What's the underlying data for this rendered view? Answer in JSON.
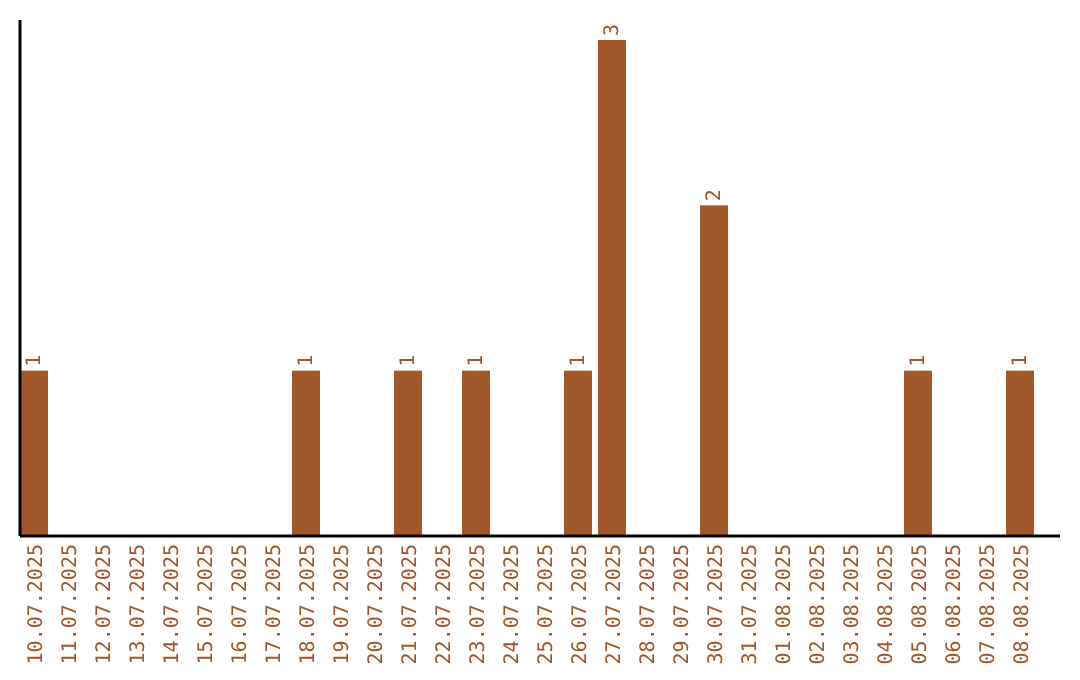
{
  "chart_data": {
    "type": "bar",
    "categories": [
      "10.07.2025",
      "11.07.2025",
      "12.07.2025",
      "13.07.2025",
      "14.07.2025",
      "15.07.2025",
      "16.07.2025",
      "17.07.2025",
      "18.07.2025",
      "19.07.2025",
      "20.07.2025",
      "21.07.2025",
      "22.07.2025",
      "23.07.2025",
      "24.07.2025",
      "25.07.2025",
      "26.07.2025",
      "27.07.2025",
      "28.07.2025",
      "29.07.2025",
      "30.07.2025",
      "31.07.2025",
      "01.08.2025",
      "02.08.2025",
      "03.08.2025",
      "04.08.2025",
      "05.08.2025",
      "06.08.2025",
      "07.08.2025",
      "08.08.2025"
    ],
    "values": [
      1,
      0,
      0,
      0,
      0,
      0,
      0,
      0,
      1,
      0,
      0,
      1,
      0,
      1,
      0,
      0,
      1,
      3,
      0,
      0,
      2,
      0,
      0,
      0,
      0,
      0,
      1,
      0,
      0,
      1
    ],
    "value_labels": [
      "1",
      null,
      null,
      null,
      null,
      null,
      null,
      null,
      "1",
      null,
      null,
      "1",
      null,
      "1",
      null,
      null,
      "1",
      "3",
      null,
      null,
      "2",
      null,
      null,
      null,
      null,
      null,
      "1",
      null,
      null,
      "1"
    ],
    "color": "#a0572a",
    "ylim": [
      0,
      3
    ],
    "tick_labels": "x"
  }
}
